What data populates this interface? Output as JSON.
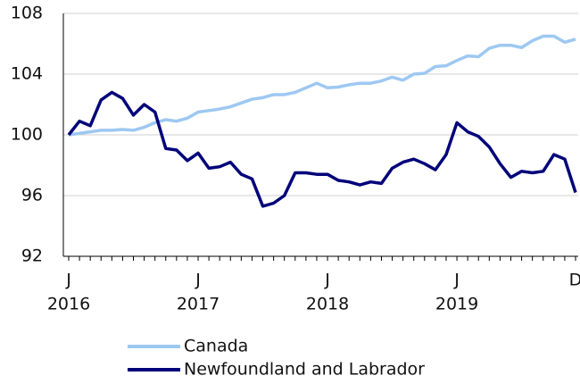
{
  "chart_data": {
    "type": "line",
    "categories": [
      "J",
      null,
      null,
      null,
      null,
      null,
      null,
      null,
      null,
      null,
      null,
      null,
      "J",
      null,
      null,
      null,
      null,
      null,
      null,
      null,
      null,
      null,
      null,
      null,
      "J",
      null,
      null,
      null,
      null,
      null,
      null,
      null,
      null,
      null,
      null,
      null,
      "J",
      null,
      null,
      null,
      null,
      null,
      null,
      null,
      null,
      null,
      null,
      "D"
    ],
    "year_labels": [
      "2016",
      "2017",
      "2018",
      "2019"
    ],
    "series": [
      {
        "name": "Canada",
        "color": "#9dc8f2",
        "values": [
          100,
          100.1,
          100.2,
          100.3,
          100.3,
          100.35,
          100.3,
          100.5,
          100.8,
          101.0,
          100.9,
          101.1,
          101.5,
          101.6,
          101.7,
          101.85,
          102.1,
          102.35,
          102.45,
          102.65,
          102.65,
          102.8,
          103.1,
          103.4,
          103.1,
          103.15,
          103.3,
          103.4,
          103.4,
          103.55,
          103.8,
          103.6,
          104.0,
          104.05,
          104.5,
          104.55,
          104.9,
          105.2,
          105.15,
          105.7,
          105.9,
          105.9,
          105.75,
          106.2,
          106.5,
          106.5,
          106.1,
          106.3
        ]
      },
      {
        "name": "Newfoundland and Labrador",
        "color": "#00007a",
        "values": [
          100,
          100.9,
          100.6,
          102.3,
          102.8,
          102.4,
          101.3,
          102.0,
          101.5,
          99.1,
          99.0,
          98.3,
          98.8,
          97.8,
          97.9,
          98.2,
          97.4,
          97.1,
          95.3,
          95.5,
          96.0,
          97.5,
          97.5,
          97.4,
          97.4,
          97.0,
          96.9,
          96.7,
          96.9,
          96.8,
          97.8,
          98.2,
          98.4,
          98.1,
          97.7,
          98.7,
          100.8,
          100.2,
          99.9,
          99.2,
          98.1,
          97.2,
          97.6,
          97.5,
          97.6,
          98.7,
          98.4,
          96.2
        ]
      }
    ],
    "ylim": [
      92,
      108
    ],
    "yticks": [
      92,
      96,
      100,
      104,
      108
    ],
    "grid": true
  }
}
